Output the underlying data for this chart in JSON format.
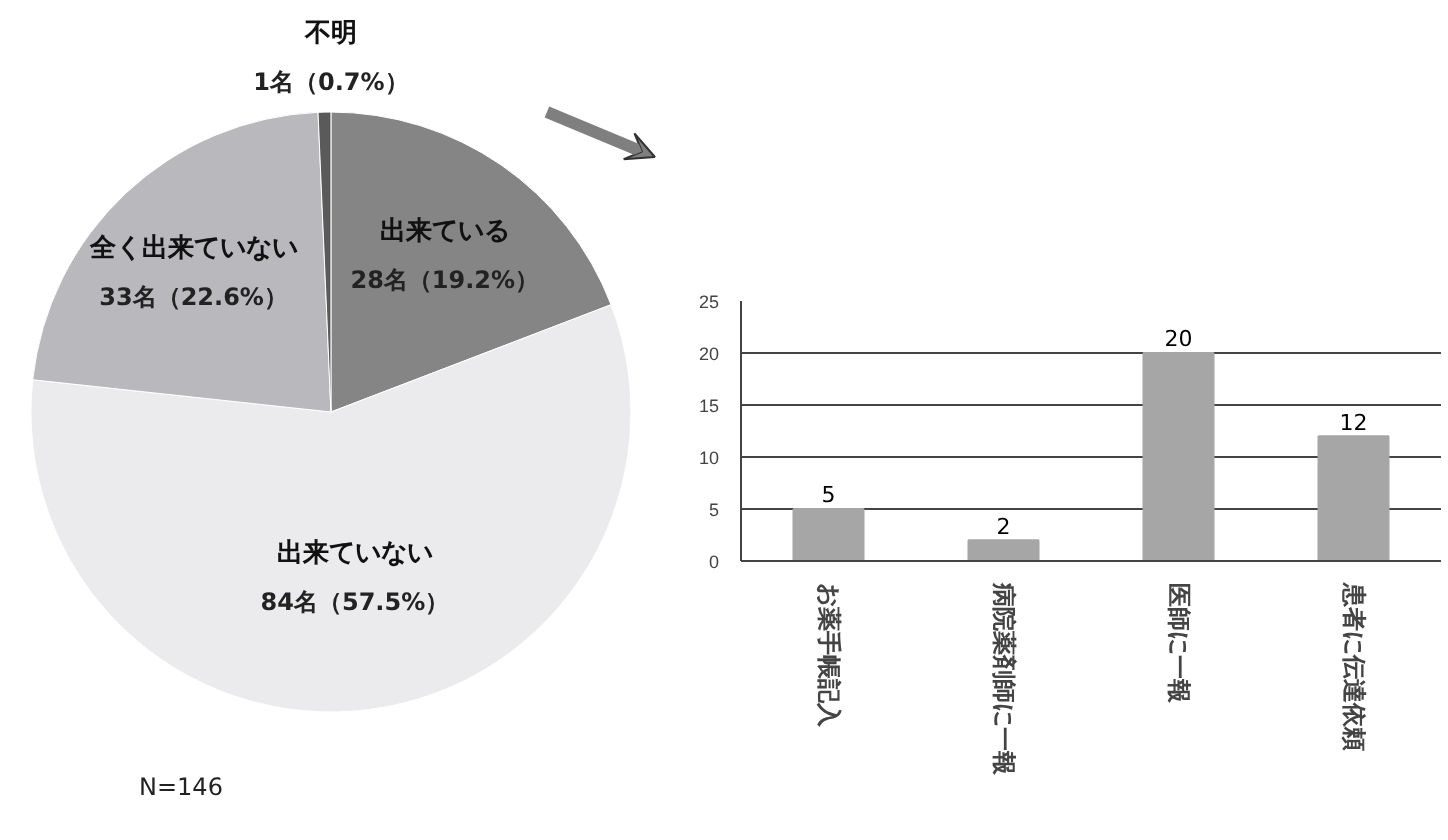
{
  "chart_data": [
    {
      "type": "pie",
      "categories": [
        "出来ている",
        "出来ていない",
        "全く出来ていない",
        "不明"
      ],
      "values": [
        28,
        84,
        33,
        1
      ],
      "value_labels": [
        "28名（19.2%）",
        "84名（57.5%）",
        "33名（22.6%）",
        "1名（0.7%）"
      ],
      "colors": [
        "#858585",
        "#ebebed",
        "#b9b9bd",
        "#5a5a5a"
      ],
      "annotations": [
        "N=146"
      ]
    },
    {
      "type": "bar",
      "categories": [
        "お薬手帳記入",
        "病院薬剤師に一報",
        "医師に一報",
        "患者に伝達依頼"
      ],
      "values": [
        5,
        2,
        20,
        12
      ],
      "color": "#a6a6a6",
      "data_labels": true,
      "ylim": [
        0,
        25
      ],
      "yticks": [
        0,
        5,
        10,
        15,
        20,
        25
      ],
      "grid": "y"
    }
  ]
}
